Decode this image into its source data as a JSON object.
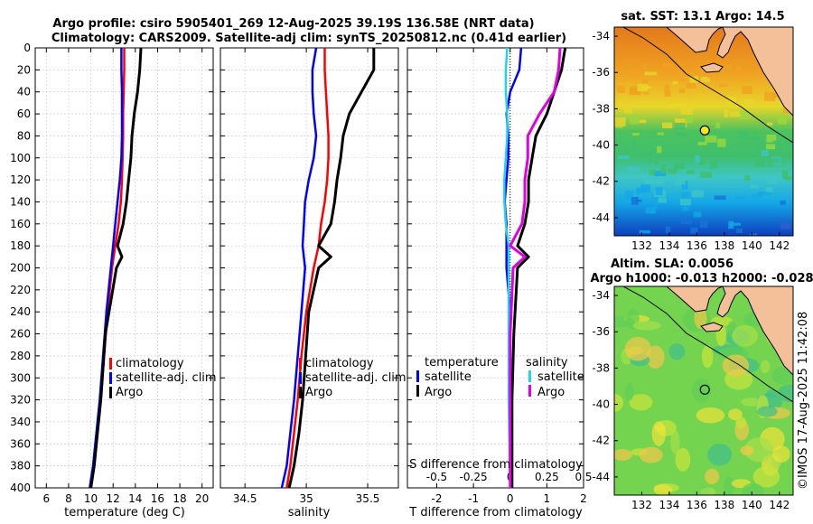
{
  "title": {
    "line1": "Argo profile: csiro 5905401_269 12-Aug-2025 39.19S 136.58E (NRT data)",
    "line2": "Climatology: CARS2009. Satellite-adj clim: synTS_20250812.nc (0.41d earlier)"
  },
  "watermark": "©IMOS 17-Aug-2025 11:42:08",
  "colors": {
    "climatology": "#ff0000",
    "satellite": "#0000ff",
    "argo": "#000000",
    "salinity_satellite": "#22d3ee",
    "salinity_argo": "#e000e0",
    "land": "#f4c09a",
    "coast": "#000000",
    "grid": "#bbbbbb"
  },
  "chart_data": [
    {
      "id": "temperature",
      "type": "line",
      "xlabel": "temperature (deg C)",
      "ylabel": "",
      "xlim": [
        5,
        21
      ],
      "ylim": [
        0,
        400
      ],
      "x_ticks": [
        6,
        8,
        10,
        12,
        14,
        16,
        18,
        20
      ],
      "y_ticks": [
        0,
        20,
        40,
        60,
        80,
        100,
        120,
        140,
        160,
        180,
        200,
        220,
        240,
        260,
        280,
        300,
        320,
        340,
        360,
        380,
        400
      ],
      "legend": [
        "climatology",
        "satellite-adj. clim",
        "Argo"
      ],
      "series": [
        {
          "name": "climatology",
          "color": "#ff0000",
          "x": [
            13.0,
            13.0,
            12.95,
            12.9,
            12.9,
            12.85,
            12.8,
            12.7,
            12.5,
            12.2,
            11.9,
            11.5,
            11.2,
            10.9,
            10.6,
            10.3,
            10.0
          ],
          "y": [
            0,
            20,
            40,
            60,
            80,
            100,
            120,
            140,
            160,
            180,
            200,
            240,
            280,
            320,
            350,
            380,
            400
          ]
        },
        {
          "name": "satellite-adj. clim",
          "color": "#0000ff",
          "x": [
            12.75,
            12.75,
            12.8,
            12.8,
            12.8,
            12.75,
            12.6,
            12.4,
            12.2,
            12.0,
            11.8,
            11.4,
            11.1,
            10.8,
            10.5,
            10.2,
            9.9
          ],
          "y": [
            0,
            20,
            40,
            60,
            80,
            100,
            120,
            140,
            160,
            180,
            200,
            240,
            280,
            320,
            350,
            380,
            400
          ]
        },
        {
          "name": "Argo",
          "color": "#000000",
          "x": [
            14.5,
            14.4,
            14.2,
            13.9,
            13.7,
            13.6,
            13.4,
            13.2,
            12.9,
            12.4,
            12.8,
            12.3,
            11.3,
            10.9,
            10.6,
            10.3,
            10.0
          ],
          "y": [
            0,
            20,
            40,
            60,
            80,
            100,
            120,
            140,
            160,
            180,
            190,
            200,
            260,
            320,
            350,
            380,
            400
          ]
        }
      ]
    },
    {
      "id": "salinity",
      "type": "line",
      "xlabel": "salinity",
      "ylabel": "",
      "xlim": [
        34.3,
        35.75
      ],
      "ylim": [
        0,
        400
      ],
      "x_ticks": [
        34.5,
        35,
        35.5
      ],
      "legend": [
        "climatology",
        "satellite-adj. clim",
        "Argo"
      ],
      "series": [
        {
          "name": "climatology",
          "color": "#ff0000",
          "x": [
            35.15,
            35.15,
            35.16,
            35.17,
            35.18,
            35.18,
            35.17,
            35.15,
            35.12,
            35.1,
            35.06,
            35.0,
            34.96,
            34.93,
            34.9,
            34.87,
            34.84
          ],
          "y": [
            0,
            20,
            40,
            60,
            80,
            100,
            120,
            140,
            160,
            180,
            200,
            240,
            280,
            320,
            350,
            380,
            400
          ]
        },
        {
          "name": "satellite-adj. clim",
          "color": "#0000ff",
          "x": [
            35.08,
            35.05,
            35.05,
            35.06,
            35.08,
            35.06,
            35.02,
            34.99,
            34.98,
            34.97,
            34.99,
            34.96,
            34.93,
            34.9,
            34.87,
            34.84,
            34.8
          ],
          "y": [
            0,
            20,
            40,
            60,
            80,
            100,
            120,
            140,
            160,
            180,
            200,
            240,
            280,
            320,
            350,
            380,
            400
          ]
        },
        {
          "name": "Argo",
          "color": "#000000",
          "x": [
            35.55,
            35.55,
            35.45,
            35.35,
            35.3,
            35.28,
            35.25,
            35.23,
            35.2,
            35.1,
            35.2,
            35.1,
            35.02,
            34.97,
            34.94,
            34.9,
            34.86
          ],
          "y": [
            0,
            20,
            40,
            60,
            80,
            100,
            120,
            140,
            160,
            180,
            190,
            200,
            240,
            320,
            350,
            380,
            400
          ]
        }
      ]
    },
    {
      "id": "difference",
      "type": "line",
      "xlabel": "T difference from climatology",
      "x2label": "S difference from climatology",
      "xlim": [
        -2.8,
        2.0
      ],
      "x2lim": [
        -0.7,
        0.5
      ],
      "ylim": [
        0,
        400
      ],
      "x_ticks": [
        -2,
        -1,
        0,
        1,
        2
      ],
      "x2_ticks": [
        "-0.5",
        "-0.25",
        "0",
        "0.25",
        "0.5"
      ],
      "legend_titles": [
        "temperature",
        "salinity"
      ],
      "legend": [
        "satellite",
        "Argo",
        "satellite",
        "Argo"
      ],
      "series": [
        {
          "name": "temperature satellite",
          "color": "#0000ff",
          "x": [
            0.3,
            0.25,
            0.0,
            -0.1,
            -0.05,
            -0.05,
            -0.1,
            -0.15,
            -0.1,
            -0.1,
            -0.1,
            0.0,
            0.0,
            0.05,
            0.05
          ],
          "y": [
            0,
            20,
            40,
            60,
            80,
            100,
            120,
            140,
            160,
            180,
            200,
            240,
            300,
            350,
            400
          ]
        },
        {
          "name": "temperature Argo",
          "color": "#000000",
          "x": [
            1.5,
            1.4,
            1.2,
            1.0,
            0.7,
            0.6,
            0.5,
            0.5,
            0.4,
            0.2,
            0.5,
            0.2,
            0.1,
            0.05,
            0.05
          ],
          "y": [
            0,
            20,
            40,
            60,
            80,
            100,
            120,
            140,
            160,
            180,
            190,
            200,
            260,
            320,
            400
          ]
        },
        {
          "name": "salinity satellite",
          "color": "#22d3ee",
          "x": [
            -0.02,
            -0.03,
            -0.03,
            -0.02,
            -0.02,
            -0.03,
            -0.04,
            -0.04,
            -0.03,
            -0.01,
            -0.01,
            -0.01,
            -0.01,
            0.0
          ],
          "y": [
            0,
            20,
            40,
            60,
            80,
            100,
            120,
            140,
            160,
            180,
            200,
            260,
            320,
            400
          ]
        },
        {
          "name": "salinity Argo",
          "color": "#e000e0",
          "x": [
            0.34,
            0.33,
            0.3,
            0.2,
            0.12,
            0.12,
            0.1,
            0.1,
            0.08,
            0.0,
            0.1,
            0.02,
            0.0,
            0.0
          ],
          "y": [
            0,
            20,
            40,
            60,
            80,
            100,
            120,
            140,
            160,
            180,
            190,
            200,
            260,
            400
          ]
        }
      ]
    },
    {
      "id": "sst_map",
      "type": "heatmap",
      "title": "sat. SST: 13.1 Argo: 14.5",
      "x_ticks": [
        132,
        134,
        136,
        138,
        140,
        142
      ],
      "y_ticks": [
        -34,
        -36,
        -38,
        -40,
        -42,
        -44
      ],
      "xlim": [
        130,
        143
      ],
      "ylim": [
        -45,
        -33.5
      ],
      "argo_position": [
        136.58,
        -39.19
      ]
    },
    {
      "id": "sla_map",
      "type": "heatmap",
      "title": "Altim. SLA: 0.0056",
      "subtitle": "Argo h1000: -0.013 h2000: -0.028",
      "x_ticks": [
        132,
        134,
        136,
        138,
        140,
        142
      ],
      "y_ticks": [
        -34,
        -36,
        -38,
        -40,
        -42,
        -44
      ],
      "xlim": [
        130,
        143
      ],
      "ylim": [
        -45,
        -33.5
      ],
      "argo_position": [
        136.58,
        -39.19
      ]
    }
  ]
}
